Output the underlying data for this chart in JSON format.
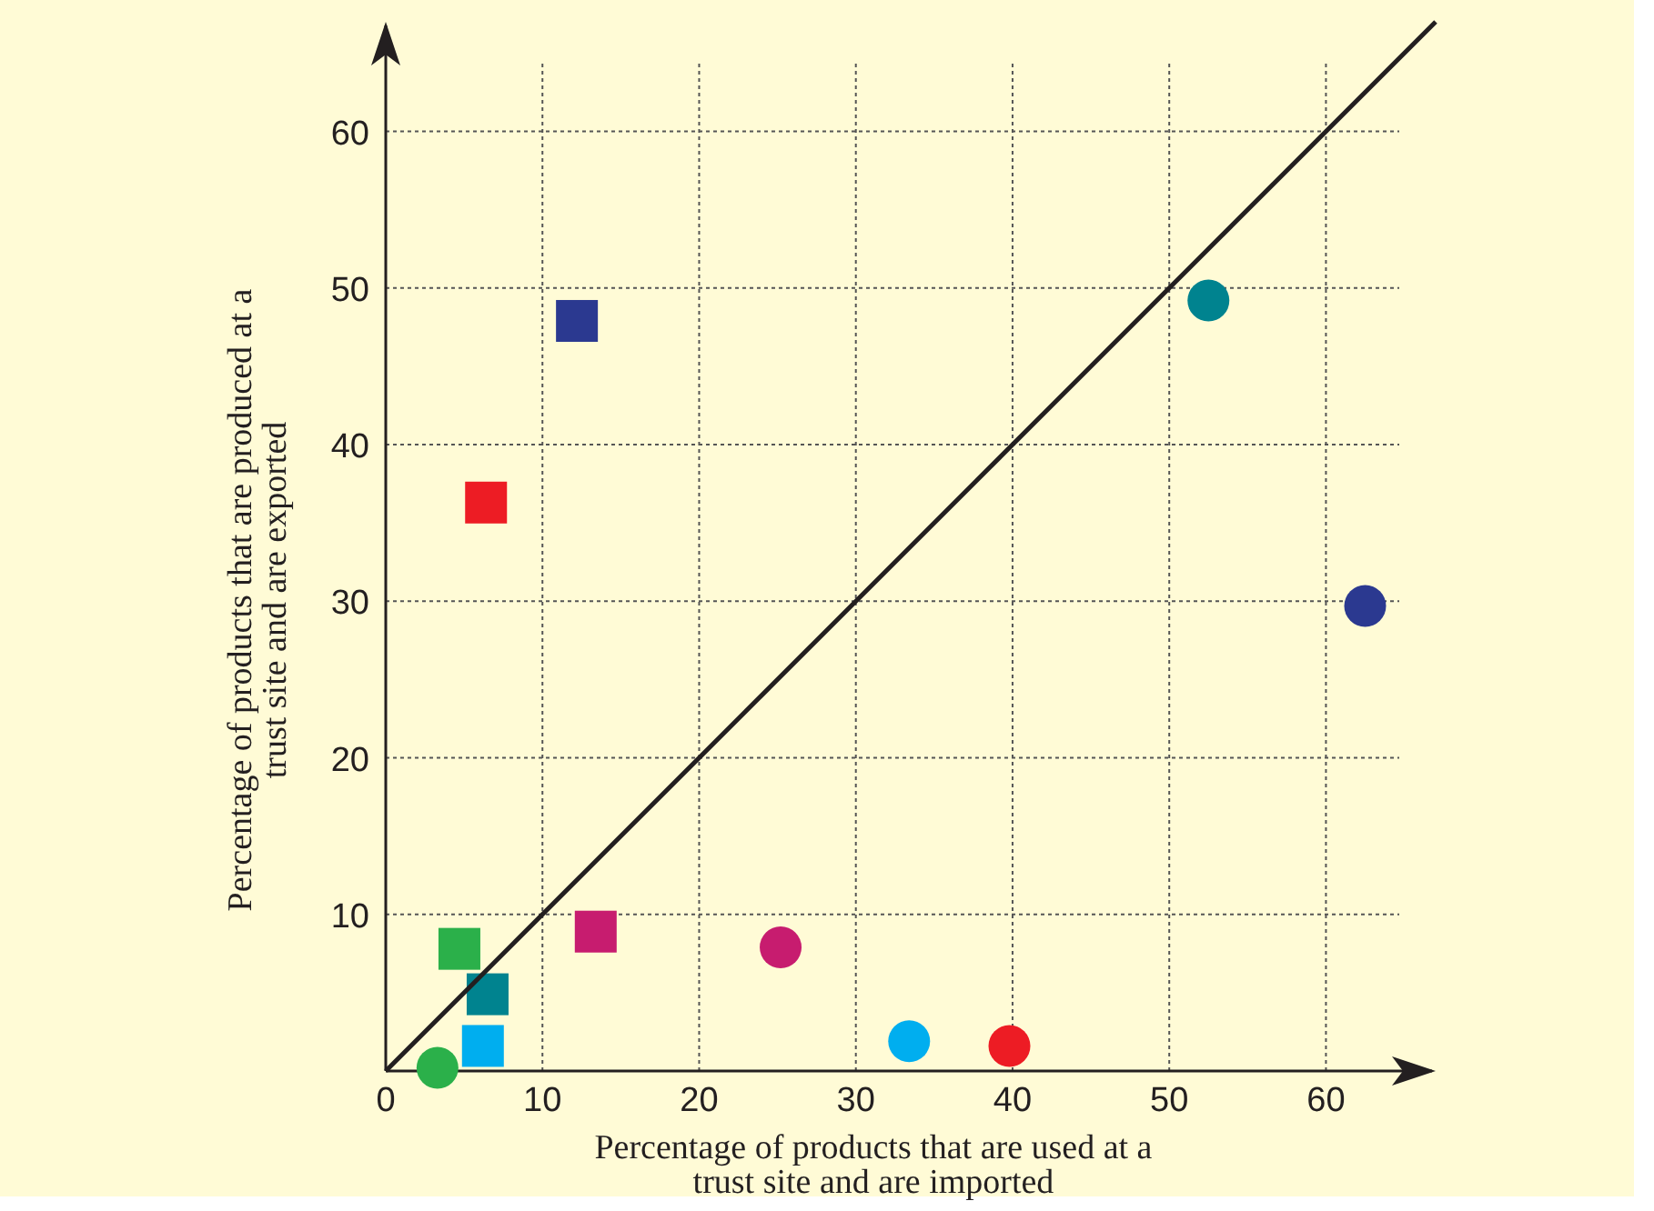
{
  "chart_data": {
    "type": "scatter",
    "xlabel": "Percentage of products that are used at a\ntrust site and are imported",
    "ylabel": "Percentage of products that are produced at a\ntrust site and are exported",
    "xlim": [
      0,
      67
    ],
    "ylim": [
      0,
      67
    ],
    "xticks": [
      0,
      10,
      20,
      30,
      40,
      50,
      60
    ],
    "yticks": [
      10,
      20,
      30,
      40,
      50,
      60
    ],
    "grid": true,
    "series": [
      {
        "marker": "square",
        "x": [
          12.2,
          6.4,
          4.7,
          6.5,
          6.2,
          13.4
        ],
        "values": [
          47.9,
          36.3,
          7.8,
          4.9,
          1.6,
          8.9
        ],
        "colors": [
          "#2b3990",
          "#ed1c24",
          "#2bb04a",
          "#00838f",
          "#00aeef",
          "#c71c6f"
        ]
      },
      {
        "marker": "circle",
        "x": [
          3.3,
          52.5,
          62.5,
          25.2,
          33.4,
          39.8
        ],
        "values": [
          0.2,
          49.2,
          29.7,
          7.9,
          1.9,
          1.6
        ],
        "colors": [
          "#2bb04a",
          "#00838f",
          "#2b3990",
          "#c71c6f",
          "#00aeef",
          "#ed1c24"
        ]
      },
      {
        "type": "line",
        "x": [
          0,
          67
        ],
        "values": [
          0,
          67
        ],
        "color": "#231f20"
      }
    ]
  }
}
